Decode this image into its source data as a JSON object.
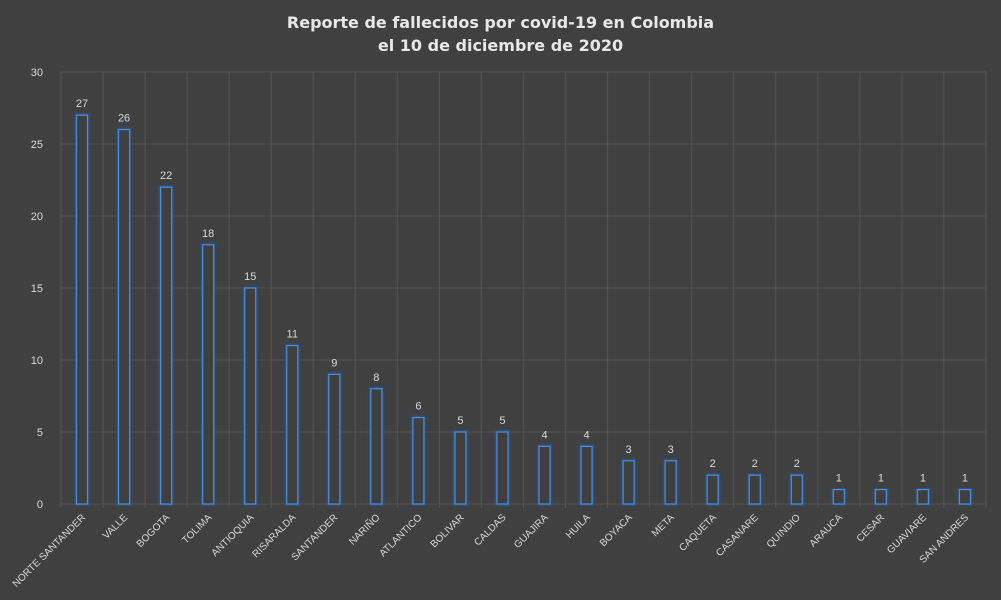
{
  "chart_data": {
    "type": "bar",
    "title_lines": [
      "Reporte de fallecidos por covid-19 en Colombia",
      "el 10 de diciembre de 2020"
    ],
    "xlabel": "",
    "ylabel": "",
    "ylim": [
      0,
      30
    ],
    "yticks": [
      0,
      5,
      10,
      15,
      20,
      25,
      30
    ],
    "grid": true,
    "categories": [
      "NORTE SANTANDER",
      "VALLE",
      "BOGOTA",
      "TOLIMA",
      "ANTIOQUIA",
      "RISARALDA",
      "SANTANDER",
      "NARIÑO",
      "ATLANTICO",
      "BOLIVAR",
      "CALDAS",
      "GUAJIRA",
      "HUILA",
      "BOYACA",
      "META",
      "CAQUETA",
      "CASANARE",
      "QUINDIO",
      "ARAUCA",
      "CESAR",
      "GUAVIARE",
      "SAN ANDRES"
    ],
    "values": [
      27,
      26,
      22,
      18,
      15,
      11,
      9,
      8,
      6,
      5,
      5,
      4,
      4,
      3,
      3,
      2,
      2,
      2,
      1,
      1,
      1,
      1
    ],
    "colors": {
      "background": "#404040",
      "bar_fill": "#3f3f3f",
      "bar_border": "#4a8ee0",
      "bar_glow": "#2a5fa8",
      "grid": "#555555",
      "text": "#d9d9d9"
    }
  }
}
